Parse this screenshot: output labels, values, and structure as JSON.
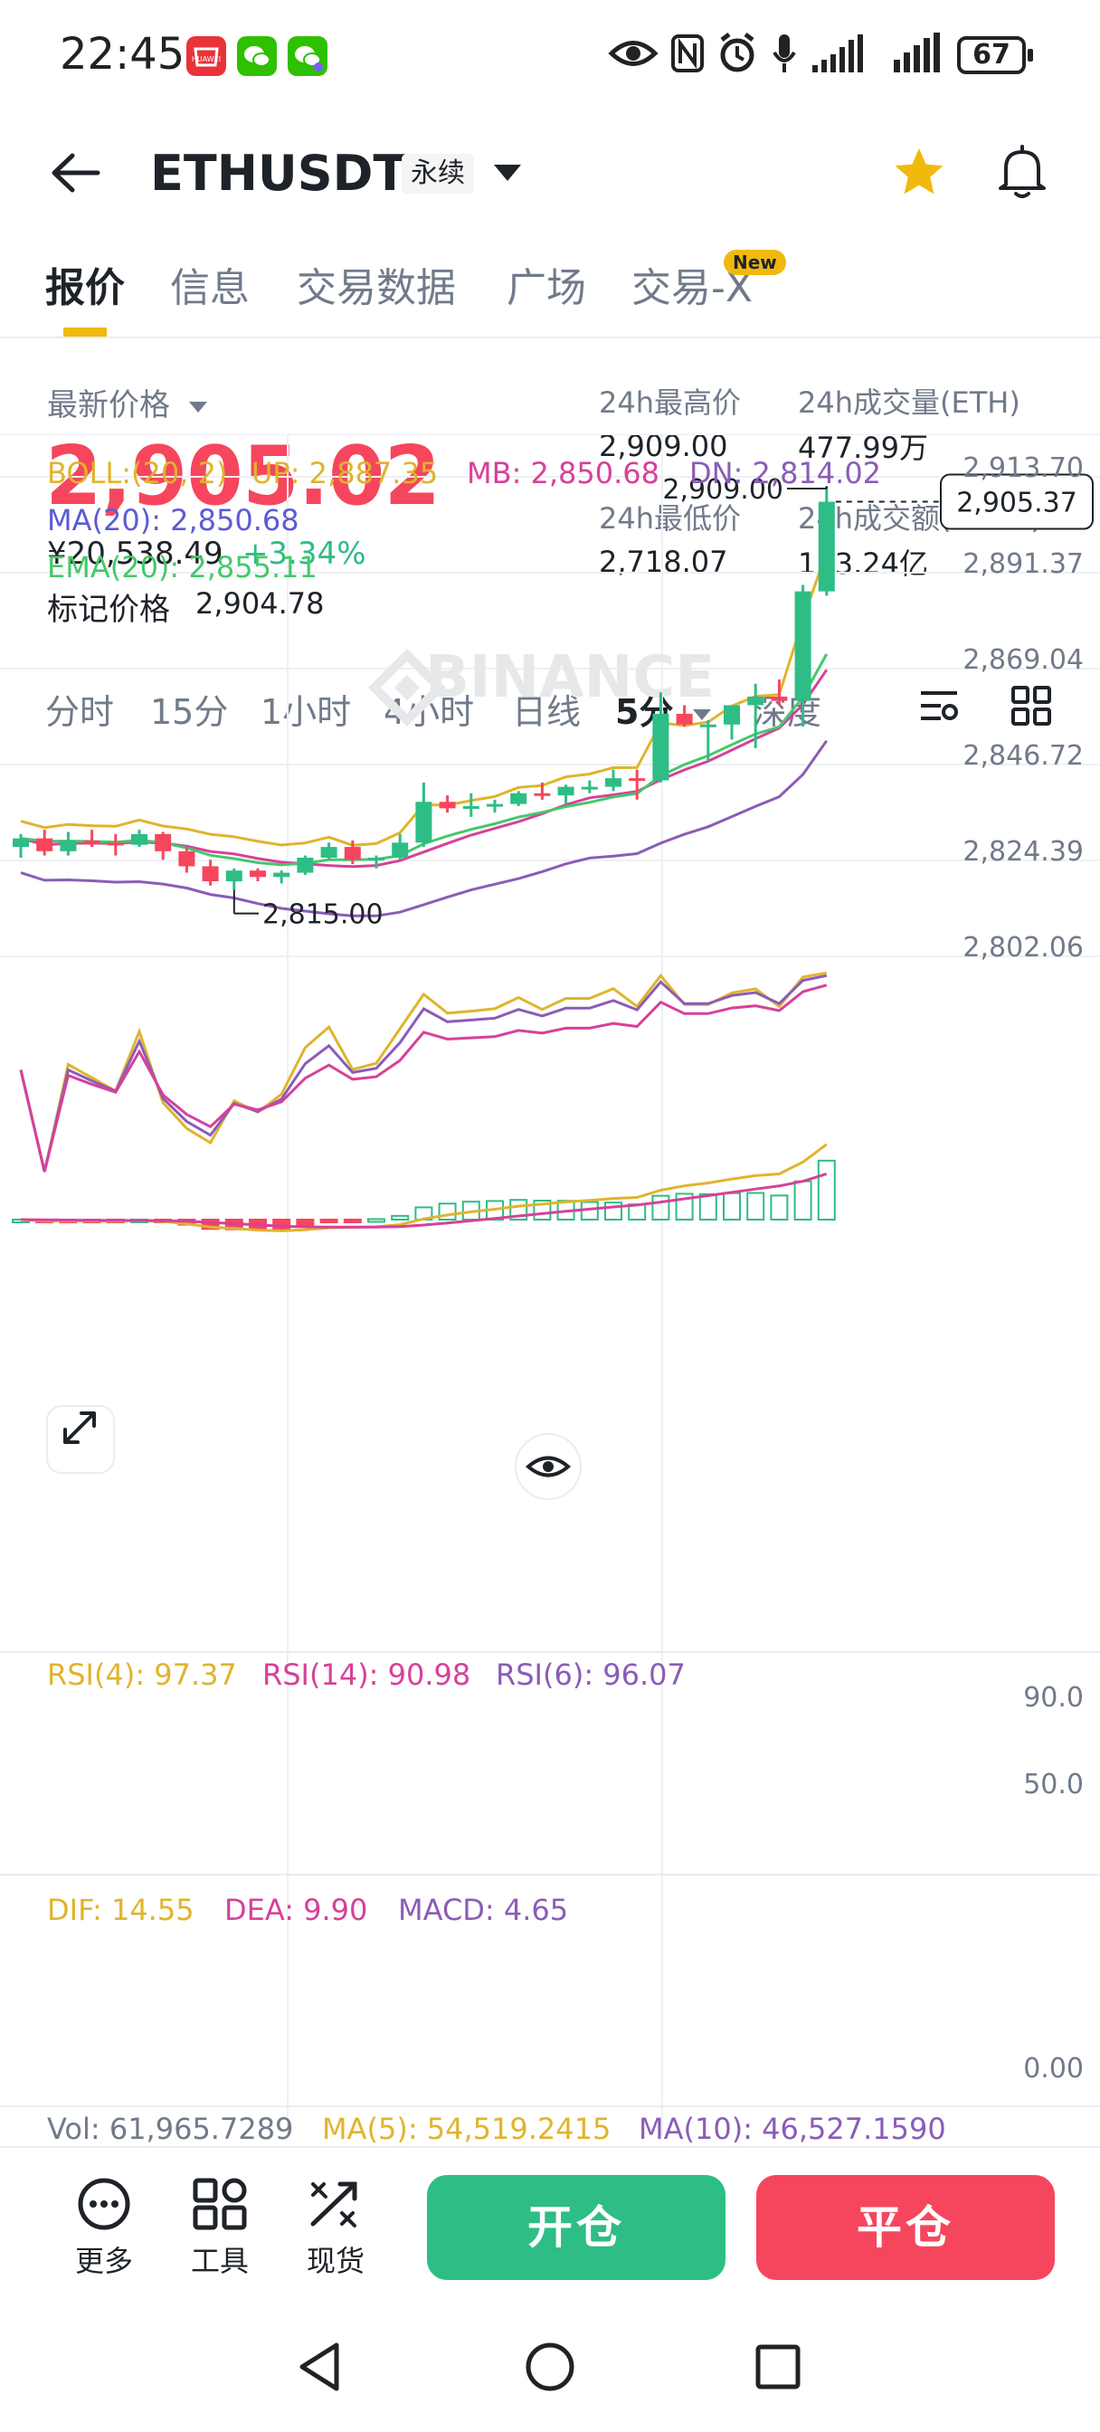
{
  "status_bar": {
    "time": "22:45",
    "app_icons": [
      "huawei-appgallery-icon",
      "wechat-icon",
      "wechat-pay-icon"
    ],
    "status_icons": [
      "eye-icon",
      "nfc-icon",
      "alarm-icon",
      "mic-icon",
      "signal-icon",
      "signal-icon"
    ],
    "battery": "67"
  },
  "header": {
    "symbol": "ETHUSDT",
    "contract_type": "永续",
    "favorite_active": true
  },
  "tabs": [
    {
      "label": "报价",
      "active": true
    },
    {
      "label": "信息",
      "active": false
    },
    {
      "label": "交易数据",
      "active": false
    },
    {
      "label": "广场",
      "active": false
    },
    {
      "label": "交易-X",
      "active": false,
      "badge": "New"
    }
  ],
  "price": {
    "last_label": "最新价格",
    "last": "2,905.02",
    "cny": "¥20,538.49",
    "change": "+3.34%",
    "mark_label": "标记价格",
    "mark": "2,904.78",
    "stats": [
      {
        "label": "24h最高价",
        "value": "2,909.00"
      },
      {
        "label": "24h成交量(ETH)",
        "value": "477.99万"
      },
      {
        "label": "24h最低价",
        "value": "2,718.07"
      },
      {
        "label": "24h成交额(USDT)",
        "value": "133.24亿"
      }
    ]
  },
  "intervals": [
    {
      "label": "分时",
      "active": false
    },
    {
      "label": "15分",
      "active": false
    },
    {
      "label": "1小时",
      "active": false
    },
    {
      "label": "4小时",
      "active": false
    },
    {
      "label": "日线",
      "active": false
    },
    {
      "label": "5分",
      "active": true
    }
  ],
  "depth_label": "深度",
  "colors": {
    "up": "#2ebd85",
    "down": "#f6465d",
    "accent": "#f0b90b",
    "boll_up": "#e0b42c",
    "boll_mb": "#d6419a",
    "boll_dn": "#8a5cb8",
    "ma": "#5b5bd6",
    "ema": "#45c86a",
    "grey": "#707a8a"
  },
  "chart_data": {
    "type": "candlestick",
    "watermark": "BINANCE",
    "indicators": {
      "boll": {
        "label": "BOLL:(20, 2)",
        "up": "UP: 2,887.35",
        "mb": "MB: 2,850.68",
        "dn": "DN: 2,814.02"
      },
      "ma": "MA(20): 2,850.68",
      "ema": "EMA(20): 2,855.11"
    },
    "y_ticks": [
      "2,913.70",
      "2,891.37",
      "2,869.04",
      "2,846.72",
      "2,824.39",
      "2,802.06"
    ],
    "ylim": [
      2802.06,
      2913.7
    ],
    "high_label": "2,909.00",
    "low_label": "2,815.00",
    "current_label": "2,905.37",
    "candles": [
      [
        2825.0,
        2828.0,
        2822.5,
        2827.0
      ],
      [
        2827.0,
        2829.0,
        2823.0,
        2824.0
      ],
      [
        2824.0,
        2828.5,
        2823.0,
        2826.5
      ],
      [
        2826.5,
        2829.0,
        2825.0,
        2826.0
      ],
      [
        2826.0,
        2828.0,
        2823.0,
        2825.5
      ],
      [
        2825.5,
        2829.0,
        2825.0,
        2828.0
      ],
      [
        2828.0,
        2828.5,
        2822.0,
        2824.0
      ],
      [
        2824.0,
        2825.0,
        2819.0,
        2820.5
      ],
      [
        2820.5,
        2822.0,
        2816.0,
        2817.0
      ],
      [
        2817.0,
        2820.0,
        2815.0,
        2819.5
      ],
      [
        2819.5,
        2820.0,
        2817.0,
        2818.0
      ],
      [
        2818.0,
        2819.5,
        2816.5,
        2819.0
      ],
      [
        2819.0,
        2823.0,
        2818.5,
        2822.5
      ],
      [
        2822.5,
        2826.0,
        2822.0,
        2825.0
      ],
      [
        2825.0,
        2826.5,
        2821.0,
        2822.0
      ],
      [
        2822.0,
        2823.0,
        2820.0,
        2822.5
      ],
      [
        2822.5,
        2828.0,
        2822.0,
        2826.0
      ],
      [
        2826.0,
        2840.0,
        2825.0,
        2835.5
      ],
      [
        2835.5,
        2837.0,
        2833.0,
        2834.0
      ],
      [
        2834.0,
        2837.5,
        2832.0,
        2834.5
      ],
      [
        2834.5,
        2836.0,
        2833.0,
        2835.0
      ],
      [
        2835.0,
        2838.0,
        2834.5,
        2837.5
      ],
      [
        2837.5,
        2840.0,
        2836.0,
        2837.0
      ],
      [
        2837.0,
        2839.5,
        2835.0,
        2839.0
      ],
      [
        2839.0,
        2840.5,
        2837.5,
        2839.0
      ],
      [
        2839.0,
        2843.0,
        2838.0,
        2841.0
      ],
      [
        2841.0,
        2843.0,
        2836.0,
        2840.5
      ],
      [
        2840.5,
        2861.0,
        2840.0,
        2856.0
      ],
      [
        2856.0,
        2858.0,
        2853.0,
        2853.5
      ],
      [
        2853.5,
        2854.5,
        2845.0,
        2853.5
      ],
      [
        2853.5,
        2858.0,
        2850.0,
        2858.0
      ],
      [
        2858.0,
        2863.0,
        2848.0,
        2860.0
      ],
      [
        2860.0,
        2864.0,
        2858.0,
        2859.0
      ],
      [
        2859.0,
        2886.0,
        2853.0,
        2884.5
      ],
      [
        2884.5,
        2909.0,
        2883.5,
        2905.37
      ]
    ],
    "rsi": {
      "labels": {
        "rsi4": "RSI(4): 97.37",
        "rsi14": "RSI(14): 90.98",
        "rsi6": "RSI(6): 96.07"
      },
      "y_ticks": [
        "90.0",
        "50.0"
      ],
      "ylim": [
        0,
        100
      ]
    },
    "macd": {
      "labels": {
        "dif": "DIF: 14.55",
        "dea": "DEA: 9.90",
        "macd": "MACD: 4.65"
      },
      "y_tick": "0.00",
      "ylim": [
        -5,
        20
      ]
    },
    "volume": {
      "vol": "Vol: 61,965.7289",
      "ma5": "MA(5): 54,519.2415",
      "ma10": "MA(10): 46,527.1590"
    }
  },
  "bottom_bar": {
    "tools": [
      {
        "label": "更多",
        "icon": "more-icon"
      },
      {
        "label": "工具",
        "icon": "tools-icon"
      },
      {
        "label": "现货",
        "icon": "spot-icon"
      }
    ],
    "open_label": "开仓",
    "close_label": "平仓"
  }
}
